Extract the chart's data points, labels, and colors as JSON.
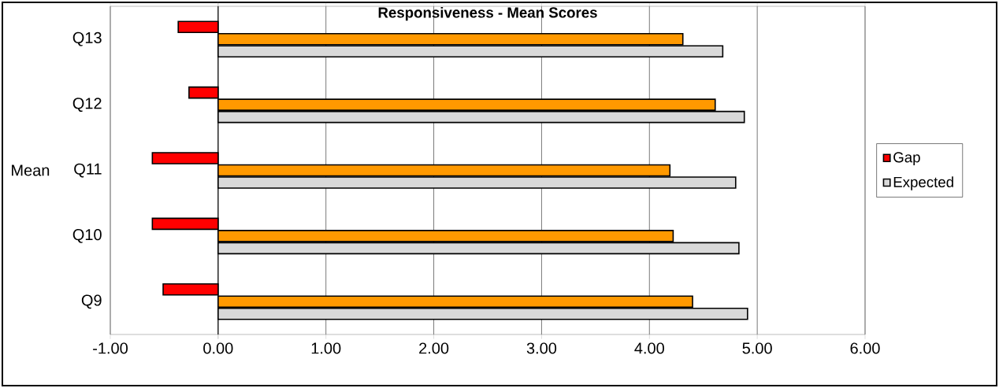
{
  "chart_data": {
    "type": "bar",
    "orientation": "horizontal",
    "title": "Responsiveness - Mean Scores",
    "ylabel": "Mean",
    "categories": [
      "Q13",
      "Q12",
      "Q11",
      "Q10",
      "Q9"
    ],
    "series": [
      {
        "name": "Gap",
        "color": "#ff0000",
        "values": [
          -0.37,
          -0.27,
          -0.61,
          -0.61,
          -0.51
        ]
      },
      {
        "color": "#ff9900",
        "values": [
          4.31,
          4.61,
          4.19,
          4.22,
          4.4
        ]
      },
      {
        "name": "Expected",
        "color": "#d9d9d9",
        "values": [
          4.68,
          4.88,
          4.8,
          4.83,
          4.91
        ]
      }
    ],
    "xlim": [
      -1,
      6
    ],
    "xticks": [
      {
        "value": -1,
        "label": "-1.00"
      },
      {
        "value": 0,
        "label": "0.00"
      },
      {
        "value": 1,
        "label": "1.00"
      },
      {
        "value": 2,
        "label": "2.00"
      },
      {
        "value": 3,
        "label": "3.00"
      },
      {
        "value": 4,
        "label": "4.00"
      },
      {
        "value": 5,
        "label": "5.00"
      },
      {
        "value": 6,
        "label": "6.00"
      }
    ],
    "grid": "x",
    "legend": "right"
  }
}
